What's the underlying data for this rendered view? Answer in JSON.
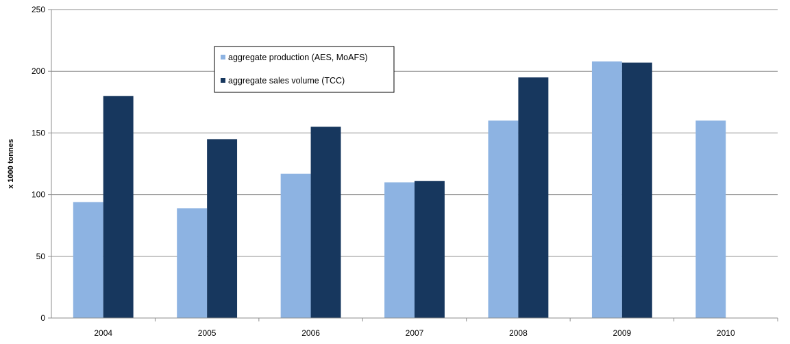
{
  "chart_data": {
    "type": "bar",
    "title": "",
    "xlabel": "",
    "ylabel": "x 1000 tonnes",
    "ylim": [
      0,
      250
    ],
    "yticks": [
      0,
      50,
      100,
      150,
      200,
      250
    ],
    "grid": true,
    "legend_position": "top-center",
    "categories": [
      "2004",
      "2005",
      "2006",
      "2007",
      "2008",
      "2009",
      "2010"
    ],
    "series": [
      {
        "name": "aggregate production (AES, MoAFS)",
        "color": "#8DB3E2",
        "values": [
          94,
          89,
          117,
          110,
          160,
          208,
          160
        ]
      },
      {
        "name": "aggregate sales volume (TCC)",
        "color": "#17375E",
        "values": [
          180,
          145,
          155,
          111,
          195,
          207,
          null
        ]
      }
    ]
  }
}
